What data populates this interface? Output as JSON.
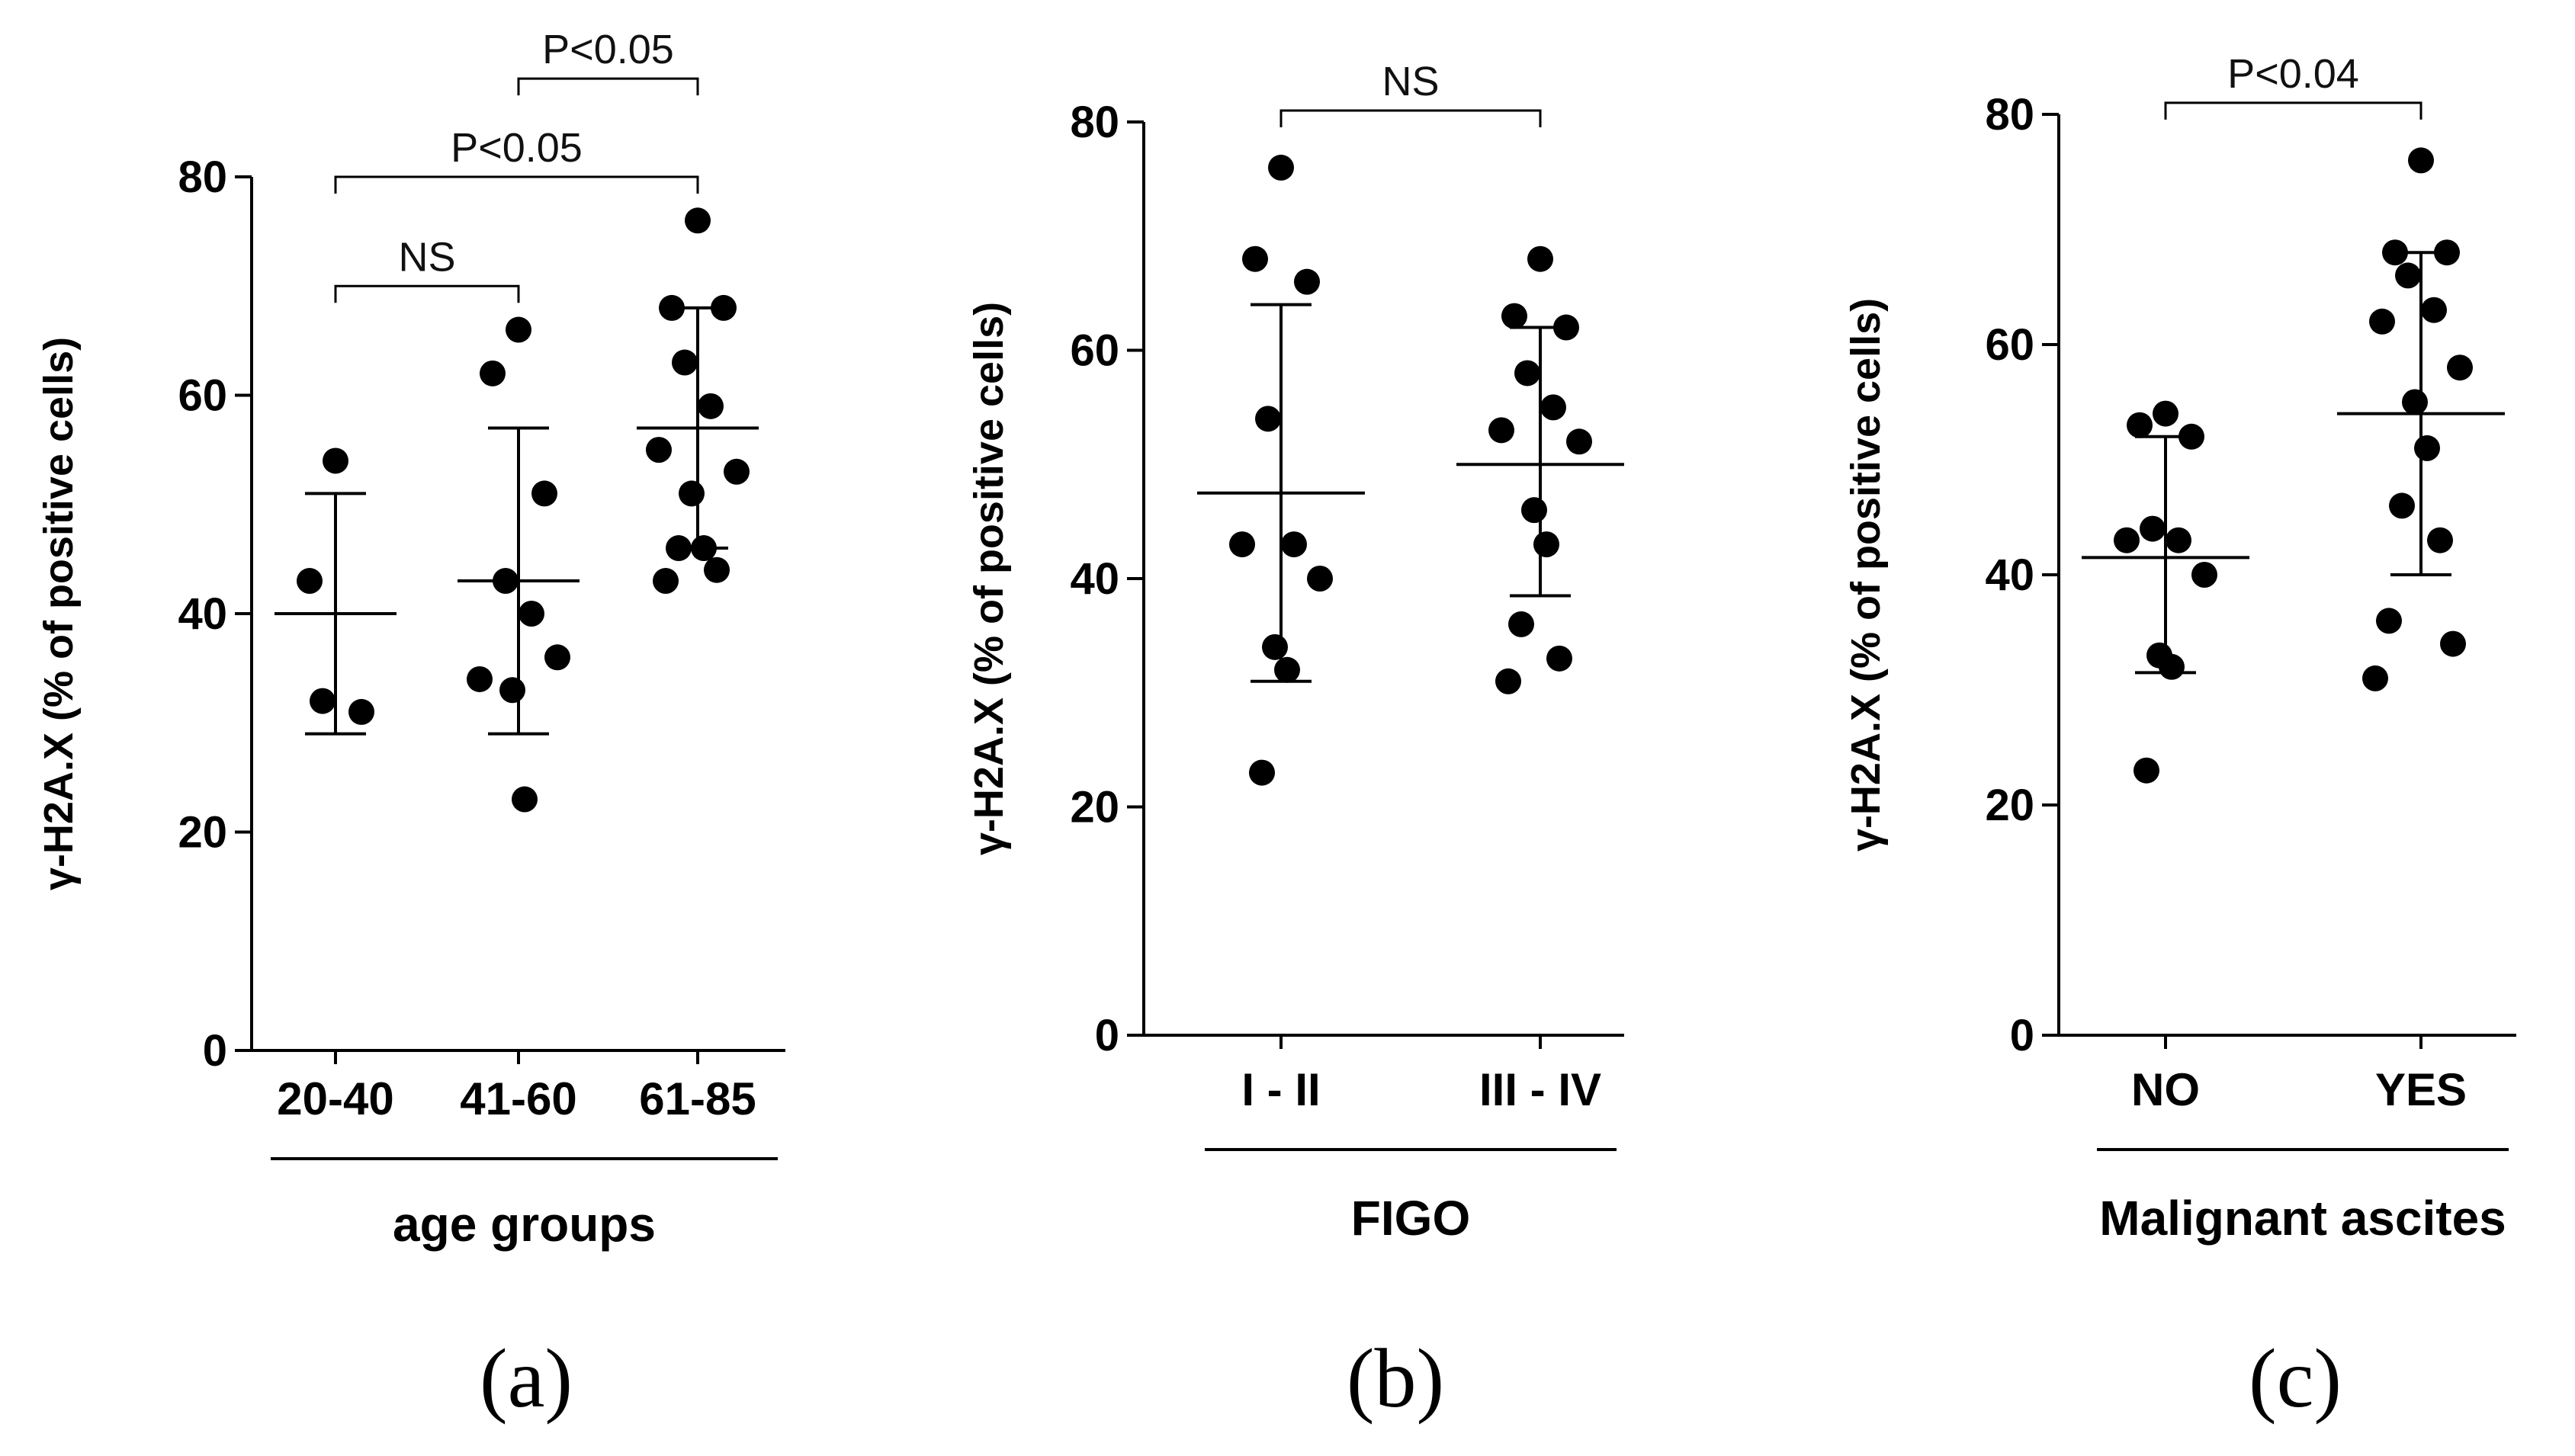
{
  "chart_data": [
    {
      "type": "scatter",
      "panel_label": "(a)",
      "ylabel": "γ-H2A.X (% of positive cells)",
      "ylim": [
        0,
        80
      ],
      "yticks": [
        0,
        20,
        40,
        60,
        80
      ],
      "group_label": "age groups",
      "categories": [
        "20-40",
        "41-60",
        "61-85"
      ],
      "points": [
        [
          54,
          43,
          31,
          32
        ],
        [
          66,
          62,
          51,
          43,
          40,
          34,
          36,
          33,
          23
        ],
        [
          76,
          68,
          68,
          63,
          59,
          55,
          53,
          51,
          46,
          46,
          44,
          43
        ]
      ],
      "mean": [
        40,
        43,
        57
      ],
      "sd_upper": [
        51,
        57,
        68
      ],
      "sd_lower": [
        29,
        29,
        46
      ],
      "comparisons": [
        {
          "from": 0,
          "to": 1,
          "label": "NS",
          "level": 70
        },
        {
          "from": 0,
          "to": 2,
          "label": "P<0.05",
          "level": 80
        },
        {
          "from": 1,
          "to": 2,
          "label": "P<0.05",
          "level": 89
        }
      ]
    },
    {
      "type": "scatter",
      "panel_label": "(b)",
      "ylabel": "γ-H2A.X (% of positive cells)",
      "ylim": [
        0,
        80
      ],
      "yticks": [
        0,
        20,
        40,
        60,
        80
      ],
      "group_label": "FIGO",
      "categories": [
        "I - II",
        "III - IV"
      ],
      "points": [
        [
          76,
          68,
          66,
          54,
          43,
          43,
          40,
          34,
          32,
          23
        ],
        [
          68,
          63,
          62,
          58,
          55,
          53,
          52,
          46,
          43,
          36,
          33,
          31
        ]
      ],
      "mean": [
        47.5,
        50
      ],
      "sd_upper": [
        64,
        62
      ],
      "sd_lower": [
        31,
        38.5
      ],
      "comparisons": [
        {
          "from": 0,
          "to": 1,
          "label": "NS",
          "level": 81
        }
      ]
    },
    {
      "type": "scatter",
      "panel_label": "(c)",
      "ylabel": "γ-H2A.X (% of positive cells)",
      "ylim": [
        0,
        80
      ],
      "yticks": [
        0,
        20,
        40,
        60,
        80
      ],
      "group_label": "Malignant ascites",
      "categories": [
        "NO",
        "YES"
      ],
      "points": [
        [
          54,
          53,
          52,
          44,
          43,
          43,
          40,
          33,
          32,
          23
        ],
        [
          76,
          68,
          68,
          66,
          63,
          62,
          58,
          55,
          51,
          46,
          43,
          36,
          34,
          31
        ]
      ],
      "mean": [
        41.5,
        54
      ],
      "sd_upper": [
        52,
        68
      ],
      "sd_lower": [
        31.5,
        40
      ],
      "comparisons": [
        {
          "from": 0,
          "to": 1,
          "label": "P<0.04",
          "level": 81
        }
      ]
    }
  ]
}
